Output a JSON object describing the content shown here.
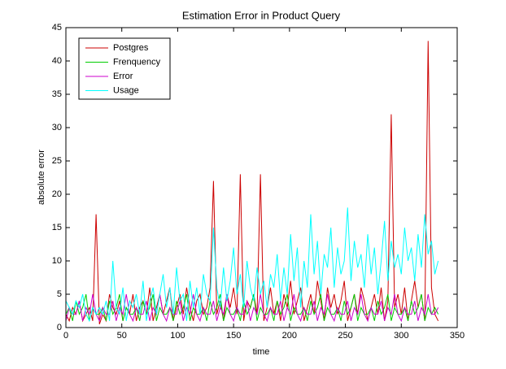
{
  "chart_data": {
    "type": "line",
    "title": "Estimation Error in Product Query",
    "xlabel": "time",
    "ylabel": "absolute error",
    "x": [
      0,
      3,
      6,
      9,
      12,
      15,
      18,
      21,
      24,
      27,
      30,
      33,
      36,
      39,
      42,
      45,
      48,
      51,
      54,
      57,
      60,
      63,
      66,
      69,
      72,
      75,
      78,
      81,
      84,
      87,
      90,
      93,
      96,
      99,
      102,
      105,
      108,
      111,
      114,
      117,
      120,
      123,
      126,
      129,
      132,
      135,
      138,
      141,
      144,
      147,
      150,
      153,
      156,
      159,
      162,
      165,
      168,
      171,
      174,
      177,
      180,
      183,
      186,
      189,
      192,
      195,
      198,
      201,
      204,
      207,
      210,
      213,
      216,
      219,
      222,
      225,
      228,
      231,
      234,
      237,
      240,
      243,
      246,
      249,
      252,
      255,
      258,
      261,
      264,
      267,
      270,
      273,
      276,
      279,
      282,
      285,
      288,
      291,
      294,
      297,
      300,
      303,
      306,
      309,
      312,
      315,
      318,
      321,
      324,
      327,
      330,
      333
    ],
    "series": [
      {
        "name": "Postgres",
        "color": "#cc0000",
        "values": [
          2,
          1,
          3,
          2,
          4,
          1,
          2,
          3,
          1,
          17,
          0.5,
          2,
          1,
          5,
          3,
          2,
          4,
          1,
          3,
          2,
          5,
          1,
          3,
          4,
          2,
          6,
          1,
          3,
          5,
          2,
          4,
          6,
          1,
          3,
          5,
          2,
          6,
          3,
          1,
          4,
          5,
          2,
          3,
          6,
          22,
          2,
          4,
          1,
          5,
          3,
          6,
          2,
          23,
          1,
          4,
          3,
          5,
          2,
          23,
          1,
          3,
          6,
          2,
          4,
          1,
          5,
          3,
          7,
          2,
          4,
          6,
          1,
          3,
          5,
          2,
          7,
          4,
          1,
          6,
          3,
          5,
          2,
          4,
          7,
          1,
          3,
          5,
          2,
          6,
          4,
          1,
          3,
          5,
          2,
          6,
          1,
          4,
          32,
          3,
          5,
          2,
          6,
          1,
          4,
          7,
          3,
          5,
          1,
          43,
          6,
          2,
          1
        ]
      },
      {
        "name": "Frenquency",
        "color": "#00cc00",
        "values": [
          2,
          3,
          1,
          4,
          2,
          3,
          5,
          1,
          3,
          2,
          2,
          3,
          1,
          4,
          2,
          3,
          5,
          1,
          3,
          2,
          2,
          3,
          1,
          4,
          2,
          3,
          5,
          1,
          3,
          2,
          2,
          3,
          1,
          4,
          2,
          3,
          5,
          1,
          3,
          2,
          2,
          3,
          1,
          4,
          2,
          3,
          5,
          1,
          3,
          2,
          2,
          3,
          1,
          4,
          2,
          3,
          5,
          1,
          3,
          2,
          2,
          3,
          1,
          4,
          2,
          3,
          5,
          1,
          3,
          2,
          2,
          3,
          1,
          4,
          2,
          3,
          5,
          1,
          3,
          2,
          2,
          3,
          1,
          4,
          2,
          3,
          5,
          1,
          3,
          2,
          2,
          3,
          1,
          4,
          2,
          3,
          5,
          1,
          3,
          2,
          2,
          3,
          1,
          4,
          2,
          3,
          5,
          1,
          3,
          2,
          3,
          2
        ]
      },
      {
        "name": "Error",
        "color": "#cc00cc",
        "values": [
          1,
          3,
          2,
          2,
          4,
          1,
          3,
          2,
          5,
          2,
          1,
          3,
          2,
          2,
          4,
          1,
          3,
          2,
          5,
          2,
          1,
          3,
          2,
          2,
          4,
          1,
          3,
          2,
          5,
          2,
          1,
          3,
          2,
          2,
          4,
          1,
          3,
          2,
          5,
          2,
          1,
          3,
          2,
          2,
          4,
          1,
          3,
          2,
          5,
          2,
          1,
          3,
          2,
          2,
          4,
          1,
          3,
          2,
          5,
          2,
          1,
          3,
          2,
          2,
          4,
          1,
          3,
          2,
          5,
          2,
          1,
          3,
          2,
          2,
          4,
          1,
          3,
          2,
          5,
          2,
          1,
          3,
          2,
          2,
          4,
          1,
          3,
          2,
          5,
          2,
          1,
          3,
          2,
          2,
          4,
          1,
          3,
          2,
          5,
          2,
          1,
          3,
          2,
          2,
          4,
          1,
          3,
          2,
          5,
          2,
          2,
          3
        ]
      },
      {
        "name": "Usage",
        "color": "#00ffff",
        "values": [
          4,
          3,
          2,
          4,
          3,
          5,
          2,
          1,
          3,
          2,
          3,
          2,
          4,
          1,
          10,
          3,
          2,
          6,
          1,
          4,
          3,
          5,
          2,
          7,
          1,
          4,
          6,
          2,
          5,
          8,
          3,
          6,
          2,
          9,
          4,
          5,
          1,
          7,
          3,
          6,
          2,
          8,
          5,
          4,
          15,
          6,
          3,
          9,
          4,
          7,
          12,
          5,
          8,
          3,
          10,
          6,
          4,
          9,
          5,
          7,
          3,
          8,
          6,
          11,
          4,
          9,
          5,
          14,
          7,
          12,
          3,
          10,
          6,
          17,
          8,
          13,
          5,
          11,
          9,
          15,
          6,
          12,
          8,
          10,
          18,
          7,
          13,
          9,
          11,
          6,
          14,
          8,
          12,
          5,
          10,
          16,
          7,
          13,
          9,
          11,
          8,
          15,
          10,
          12,
          7,
          14,
          9,
          17,
          11,
          13,
          8,
          10
        ]
      }
    ],
    "xlim": [
      0,
      350
    ],
    "xticks": [
      0,
      50,
      100,
      150,
      200,
      250,
      300,
      350
    ],
    "ylim": [
      0,
      45
    ],
    "yticks": [
      0,
      5,
      10,
      15,
      20,
      25,
      30,
      35,
      40,
      45
    ],
    "legend": "upper left"
  }
}
